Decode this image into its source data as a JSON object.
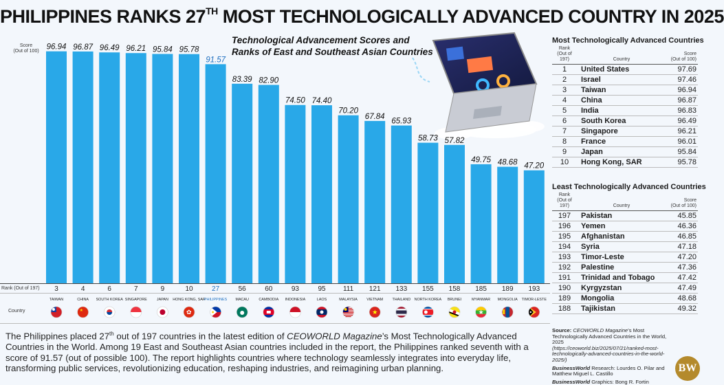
{
  "title": {
    "pre": "PHILIPPINES RANKS 27",
    "sup": "TH",
    "post": " MOST TECHNOLOGICALLY ADVANCED COUNTRY IN 2025"
  },
  "chart_data": {
    "type": "bar",
    "title": "Technological Advancement Scores and Ranks of East and Southeast Asian Countries",
    "ylabel": "Score (Out of 100)",
    "rank_label": "Rank (Out of 197)",
    "country_label": "Country",
    "ylim": [
      0,
      100
    ],
    "categories": [
      "TAIWAN",
      "CHINA",
      "SOUTH KOREA",
      "SINGAPORE",
      "JAPAN",
      "HONG KONG, SAR",
      "PHILIPPINES",
      "MACAU",
      "CAMBODIA",
      "INDONESIA",
      "LAOS",
      "MALAYSIA",
      "VIETNAM",
      "THAILAND",
      "NORTH KOREA",
      "BRUNEI",
      "MYANMAR",
      "MONGOLIA",
      "TIMOR-LESTE"
    ],
    "values": [
      96.94,
      96.87,
      96.49,
      96.21,
      95.84,
      95.78,
      91.57,
      83.39,
      82.9,
      74.5,
      74.4,
      70.2,
      67.84,
      65.93,
      58.73,
      57.82,
      49.75,
      48.68,
      47.2
    ],
    "value_labels": [
      "96.94",
      "96.87",
      "96.49",
      "96.21",
      "95.84",
      "95.78",
      "91.57",
      "83.39",
      "82.90",
      "74.50",
      "74.40",
      "70.20",
      "67.84",
      "65.93",
      "58.73",
      "57.82",
      "49.75",
      "48.68",
      "47.20"
    ],
    "ranks": [
      "3",
      "4",
      "6",
      "7",
      "9",
      "10",
      "27",
      "56",
      "60",
      "93",
      "95",
      "111",
      "121",
      "133",
      "155",
      "158",
      "185",
      "189",
      "193"
    ],
    "highlight": "PHILIPPINES",
    "bar_color": "#29a8e8",
    "highlight_color": "#1e6fc0"
  },
  "flags": [
    "taiwan",
    "china",
    "south-korea",
    "singapore",
    "japan",
    "hong-kong",
    "philippines",
    "macau",
    "cambodia",
    "indonesia",
    "laos",
    "malaysia",
    "vietnam",
    "thailand",
    "north-korea",
    "brunei",
    "myanmar",
    "mongolia",
    "timor-leste"
  ],
  "most_advanced": {
    "title": "Most Technologically Advanced Countries",
    "header": {
      "rank": "Rank (Out of 197)",
      "country": "Country",
      "score": "Score (Out of 100)"
    },
    "rows": [
      {
        "rank": "1",
        "country": "United States",
        "score": "97.69"
      },
      {
        "rank": "2",
        "country": "Israel",
        "score": "97.46"
      },
      {
        "rank": "3",
        "country": "Taiwan",
        "score": "96.94"
      },
      {
        "rank": "4",
        "country": "China",
        "score": "96.87"
      },
      {
        "rank": "5",
        "country": "India",
        "score": "96.83"
      },
      {
        "rank": "6",
        "country": "South Korea",
        "score": "96.49"
      },
      {
        "rank": "7",
        "country": "Singapore",
        "score": "96.21"
      },
      {
        "rank": "8",
        "country": "France",
        "score": "96.01"
      },
      {
        "rank": "9",
        "country": "Japan",
        "score": "95.84"
      },
      {
        "rank": "10",
        "country": "Hong Kong, SAR",
        "score": "95.78"
      }
    ]
  },
  "least_advanced": {
    "title": "Least Technologically Advanced Countries",
    "header": {
      "rank": "Rank (Out of 197)",
      "country": "Country",
      "score": "Score (Out of 100)"
    },
    "rows": [
      {
        "rank": "197",
        "country": "Pakistan",
        "score": "45.85"
      },
      {
        "rank": "196",
        "country": "Yemen",
        "score": "46.36"
      },
      {
        "rank": "195",
        "country": "Afghanistan",
        "score": "46.85"
      },
      {
        "rank": "194",
        "country": "Syria",
        "score": "47.18"
      },
      {
        "rank": "193",
        "country": "Timor-Leste",
        "score": "47.20"
      },
      {
        "rank": "192",
        "country": "Palestine",
        "score": "47.36"
      },
      {
        "rank": "191",
        "country": "Trinidad and Tobago",
        "score": "47.42"
      },
      {
        "rank": "190",
        "country": "Kyrgyzstan",
        "score": "47.49"
      },
      {
        "rank": "189",
        "country": "Mongolia",
        "score": "48.68"
      },
      {
        "rank": "188",
        "country": "Tajikistan",
        "score": "49.32"
      }
    ]
  },
  "summary": {
    "p1": "The Philippines placed 27",
    "p1_sup": "th",
    "p2": " out of 197 countries in the latest edition of ",
    "p2_italic": "CEOWORLD Magazine",
    "p3": "’s Most Technologically Advanced Countries in the World. Among 19 East and Southeast Asian countries included in the report, the Philippines ranked seventh with a score of 91.57 (out of possible 100). The report highlights countries where technology seamlessly integrates into everyday life, transforming public services, revolutionizing education, reshaping industries, and reimagining urban planning."
  },
  "source": {
    "label": "Source: ",
    "italic": "CEOWORLD Magazine",
    "text": "’s Most Technologically Advanced Countries in the World, 2025",
    "url": "(https://ceoworld.biz/2025/07/21/ranked-most-technologically-advanced-countries-in-the-world-2025/)",
    "research_label": "BusinessWorld",
    "research_text": " Research: Lourdes O. Pilar and Matthew Miguel L. Castillo",
    "graphics_label": "BusinessWorld",
    "graphics_text": " Graphics: Bong R. Fortin"
  },
  "logo": "BW"
}
